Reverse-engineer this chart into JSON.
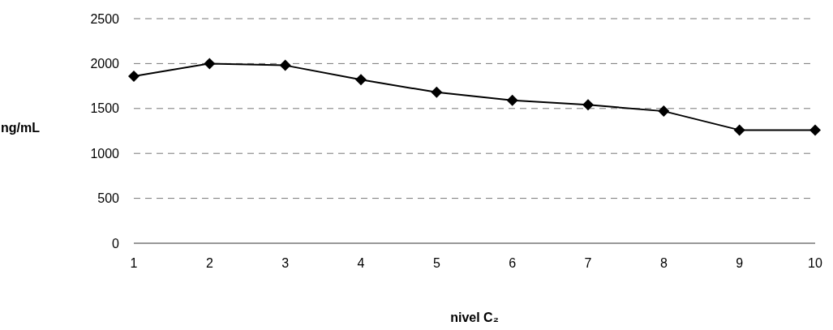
{
  "chart_data": {
    "type": "line",
    "xlabel": "nivel C₂",
    "ylabel": "ng/mL",
    "x": [
      1,
      2,
      3,
      4,
      5,
      6,
      7,
      8,
      9,
      10
    ],
    "series": [
      {
        "color": "#000000",
        "values": [
          1860,
          2000,
          1980,
          1820,
          1680,
          1590,
          1540,
          1470,
          1260,
          1260
        ]
      }
    ],
    "xlim": [
      1,
      10
    ],
    "xticks": [
      1,
      2,
      3,
      4,
      5,
      6,
      7,
      8,
      9,
      10
    ],
    "ylim": [
      0,
      2500
    ],
    "yticks": [
      0,
      500,
      1000,
      1500,
      2000,
      2500
    ],
    "grid": "y",
    "marker": "diamond",
    "line_style": "solid"
  }
}
